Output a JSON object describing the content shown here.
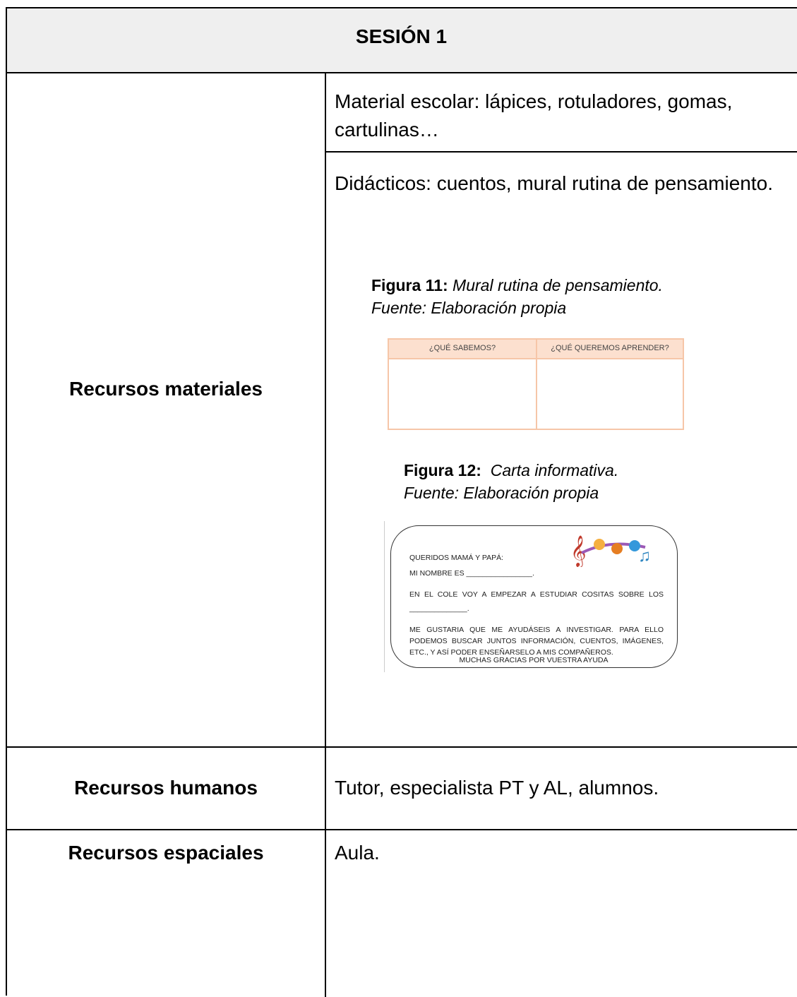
{
  "header": {
    "title": "SESIÓN 1"
  },
  "rows": [
    {
      "label": "Recursos materiales",
      "items": [
        "Material escolar: lápices, rotuladores, gomas, cartulinas…",
        "Didácticos: cuentos, mural rutina de pensamiento."
      ]
    },
    {
      "label": "Recursos humanos",
      "items": [
        "Tutor, especialista PT y AL, alumnos."
      ]
    },
    {
      "label": "Recursos espaciales",
      "items": [
        "Aula."
      ]
    }
  ],
  "figures": [
    {
      "label": "Figura 11:",
      "title": "Mural rutina de pensamiento.",
      "source": "Fuente: Elaboración propia",
      "columns": [
        "¿QUÉ SABEMOS?",
        "¿QUÉ QUEREMOS APRENDER?"
      ]
    },
    {
      "label": "Figura 12:",
      "title": "Carta informativa.",
      "source": "Fuente: Elaboración propia",
      "letter": [
        "QUERIDOS MAMÁ Y PAPÁ:",
        "MI NOMBRE ES ________________.",
        "EN EL COLE VOY A EMPEZAR A ESTUDIAR COSITAS SOBRE LOS ______________.",
        "ME GUSTARIA QUE ME AYUDÁSEIS A INVESTIGAR. PARA ELLO PODEMOS BUSCAR JUNTOS INFORMACIÓN, CUENTOS, IMÁGENES, ETC., Y ASÍ PODER ENSEÑARSELO A MIS COMPAÑEROS.",
        "MUCHAS GRACIAS POR VUESTRA AYUDA"
      ]
    }
  ]
}
